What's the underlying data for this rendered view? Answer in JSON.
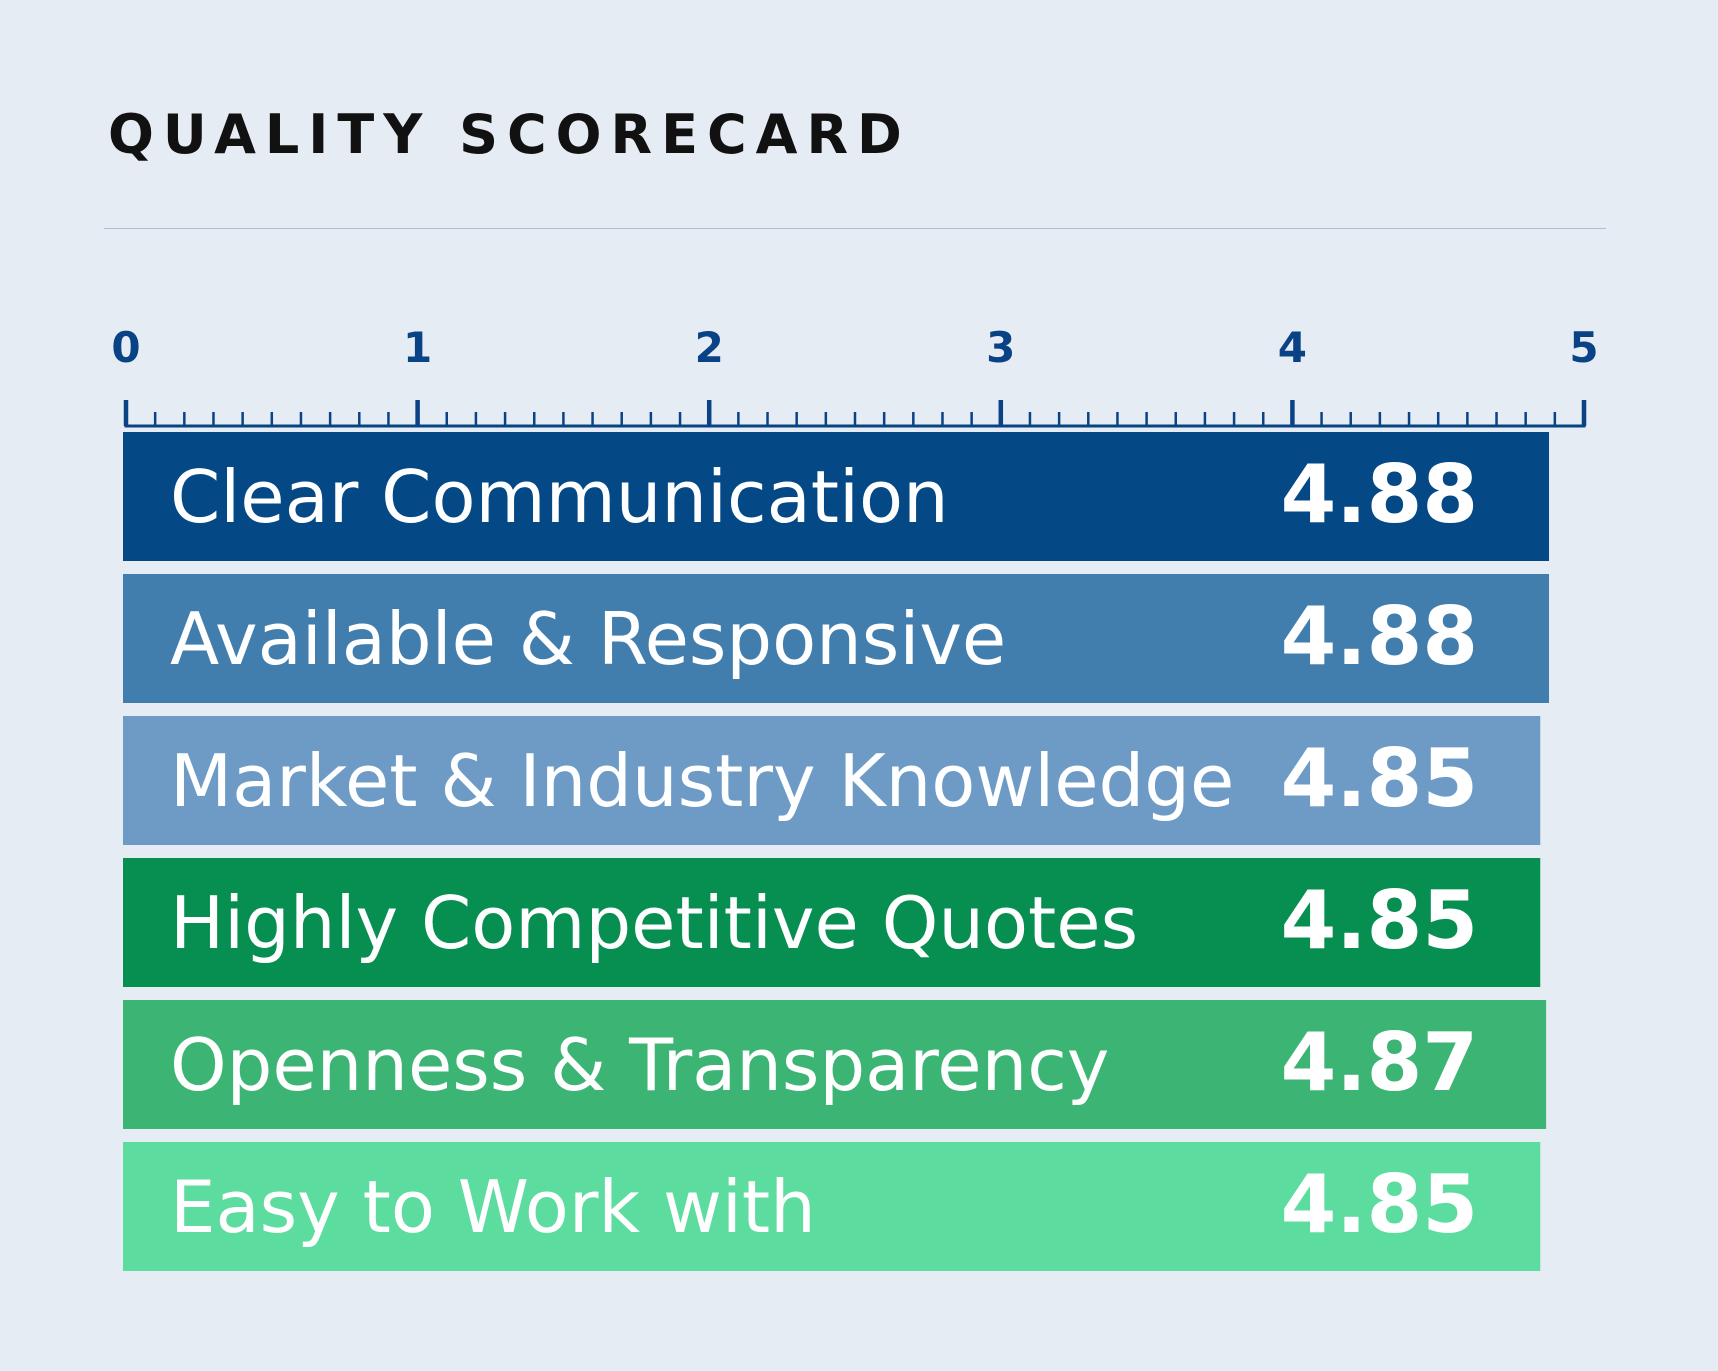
{
  "chart_data": {
    "type": "bar",
    "orientation": "horizontal",
    "title": "QUALITY SCORECARD",
    "xlabel": "",
    "ylabel": "",
    "xlim": [
      0,
      5
    ],
    "xticks": [
      "0",
      "1",
      "2",
      "3",
      "4",
      "5"
    ],
    "minor_ticks_per_unit": 10,
    "grid": false,
    "legend": "none",
    "bars": [
      {
        "label": "Clear Communication",
        "value": 4.88,
        "value_label": "4.88",
        "color": "#044986"
      },
      {
        "label": "Available & Responsive",
        "value": 4.88,
        "value_label": "4.88",
        "color": "#427ead"
      },
      {
        "label": "Market & Industry Knowledge",
        "value": 4.85,
        "value_label": "4.85",
        "color": "#6d9bc6"
      },
      {
        "label": "Highly Competitive Quotes",
        "value": 4.85,
        "value_label": "4.85",
        "color": "#078f52"
      },
      {
        "label": "Openness & Transparency",
        "value": 4.87,
        "value_label": "4.87",
        "color": "#3cb574"
      },
      {
        "label": "Easy to Work with",
        "value": 4.85,
        "value_label": "4.85",
        "color": "#5cdc9f"
      }
    ],
    "colors": {
      "background": "#e6ecf4",
      "axis": "#0a4385",
      "bar_text": "#ffffff",
      "title": "#111111"
    }
  }
}
